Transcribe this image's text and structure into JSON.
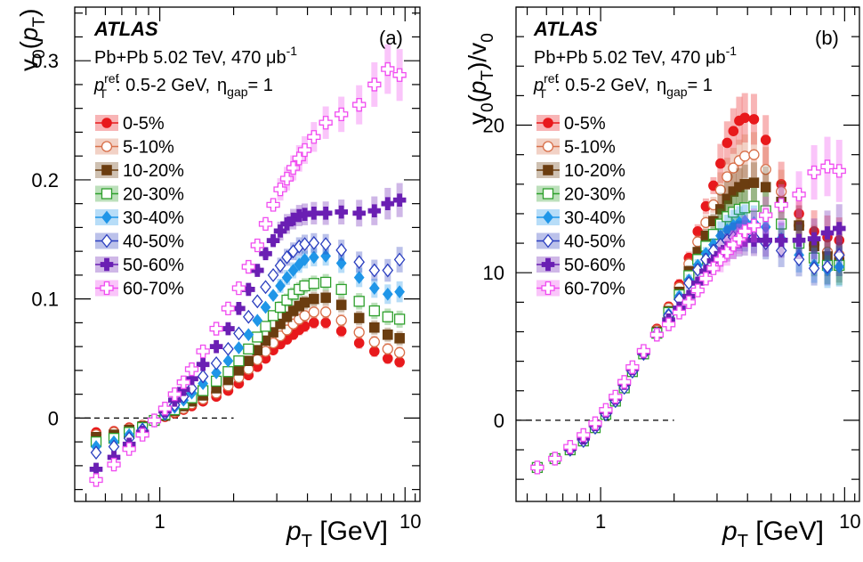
{
  "colors": {
    "series": [
      "#e8191c",
      "#d8704a",
      "#6b3d10",
      "#2ea02c",
      "#1f96e8",
      "#2b3fbf",
      "#6a1fb3",
      "#f04cf0"
    ],
    "reference_line": "#000000"
  },
  "chart_data": [
    {
      "type": "scatter",
      "panel": "(a)",
      "experiment": "ATLAS",
      "info_line1": "Pb+Pb 5.02 TeV, 470 μb",
      "info_line1_sup": "-1",
      "info_line2_p": "p",
      "info_line2_sup": "ref",
      "info_line2_sub": "T",
      "info_line2_rest": ": 0.5-2 GeV,",
      "info_eta": "η",
      "info_eta_sub": "gap",
      "info_eta_rest": "= 1",
      "ylabel": "v0(pT)",
      "xlabel": "pT [GeV]",
      "xscale": "log",
      "xlim": [
        0.45,
        11.5
      ],
      "ylim": [
        -0.07,
        0.345
      ],
      "yticks": [
        "0",
        "0.1",
        "0.2",
        "0.3"
      ],
      "xticks": [
        "1",
        "10"
      ],
      "legend_position": "top-left",
      "reference_line": "dashed at y = 0 from pT 0.45 to 2",
      "x": [
        0.55,
        0.65,
        0.75,
        0.85,
        0.95,
        1.05,
        1.15,
        1.25,
        1.35,
        1.5,
        1.7,
        1.9,
        2.1,
        2.3,
        2.5,
        2.7,
        2.9,
        3.1,
        3.3,
        3.5,
        3.7,
        3.9,
        4.25,
        4.75,
        5.5,
        6.5,
        7.5,
        8.5,
        9.5
      ],
      "series": [
        {
          "name": "0-5%",
          "values": [
            -0.012,
            -0.011,
            -0.008,
            -0.006,
            -0.002,
            0.001,
            0.004,
            0.007,
            0.01,
            0.014,
            0.018,
            0.023,
            0.029,
            0.036,
            0.043,
            0.05,
            0.057,
            0.062,
            0.066,
            0.07,
            0.074,
            0.077,
            0.08,
            0.08,
            0.073,
            0.063,
            0.056,
            0.05,
            0.047
          ]
        },
        {
          "name": "5-10%",
          "values": [
            -0.014,
            -0.012,
            -0.009,
            -0.006,
            -0.002,
            0.002,
            0.005,
            0.008,
            0.012,
            0.016,
            0.021,
            0.027,
            0.034,
            0.041,
            0.049,
            0.056,
            0.063,
            0.069,
            0.074,
            0.079,
            0.083,
            0.086,
            0.089,
            0.089,
            0.082,
            0.072,
            0.064,
            0.058,
            0.055
          ]
        },
        {
          "name": "10-20%",
          "values": [
            -0.016,
            -0.014,
            -0.01,
            -0.007,
            -0.002,
            0.002,
            0.006,
            0.01,
            0.014,
            0.019,
            0.025,
            0.032,
            0.04,
            0.048,
            0.057,
            0.065,
            0.072,
            0.079,
            0.085,
            0.09,
            0.094,
            0.097,
            0.1,
            0.101,
            0.095,
            0.084,
            0.076,
            0.07,
            0.067
          ]
        },
        {
          "name": "20-30%",
          "values": [
            -0.02,
            -0.017,
            -0.012,
            -0.008,
            -0.002,
            0.003,
            0.007,
            0.012,
            0.017,
            0.023,
            0.031,
            0.039,
            0.048,
            0.058,
            0.068,
            0.077,
            0.086,
            0.093,
            0.099,
            0.104,
            0.108,
            0.111,
            0.113,
            0.114,
            0.108,
            0.098,
            0.09,
            0.085,
            0.083
          ]
        },
        {
          "name": "30-40%",
          "values": [
            -0.024,
            -0.02,
            -0.014,
            -0.009,
            -0.002,
            0.003,
            0.009,
            0.015,
            0.021,
            0.029,
            0.038,
            0.048,
            0.059,
            0.07,
            0.082,
            0.093,
            0.103,
            0.111,
            0.118,
            0.124,
            0.129,
            0.133,
            0.135,
            0.136,
            0.13,
            0.118,
            0.109,
            0.104,
            0.106
          ]
        },
        {
          "name": "40-50%",
          "values": [
            -0.029,
            -0.024,
            -0.017,
            -0.01,
            -0.002,
            0.004,
            0.011,
            0.018,
            0.025,
            0.035,
            0.046,
            0.058,
            0.071,
            0.085,
            0.098,
            0.11,
            0.12,
            0.128,
            0.135,
            0.14,
            0.144,
            0.146,
            0.147,
            0.146,
            0.141,
            0.131,
            0.124,
            0.124,
            0.133
          ]
        },
        {
          "name": "50-60%",
          "values": [
            -0.043,
            -0.033,
            -0.022,
            -0.012,
            -0.002,
            0.006,
            0.015,
            0.024,
            0.033,
            0.045,
            0.06,
            0.075,
            0.092,
            0.108,
            0.124,
            0.138,
            0.149,
            0.157,
            0.163,
            0.167,
            0.17,
            0.171,
            0.172,
            0.172,
            0.173,
            0.172,
            0.174,
            0.18,
            0.183
          ]
        },
        {
          "name": "60-70%",
          "values": [
            -0.052,
            -0.039,
            -0.026,
            -0.014,
            -0.002,
            0.008,
            0.02,
            0.03,
            0.041,
            0.056,
            0.075,
            0.092,
            0.109,
            0.127,
            0.145,
            0.163,
            0.179,
            0.192,
            0.201,
            0.21,
            0.218,
            0.225,
            0.236,
            0.248,
            0.255,
            0.263,
            0.28,
            0.293,
            0.288
          ]
        }
      ]
    },
    {
      "type": "scatter",
      "panel": "(b)",
      "experiment": "ATLAS",
      "info_line1": "Pb+Pb 5.02 TeV, 470 μb",
      "info_line1_sup": "-1",
      "info_line2_p": "p",
      "info_line2_sup": "ref",
      "info_line2_sub": "T",
      "info_line2_rest": ": 0.5-2 GeV,",
      "info_eta": "η",
      "info_eta_sub": "gap",
      "info_eta_rest": "= 1",
      "ylabel": "v0(pT)/v0",
      "xlabel": "pT [GeV]",
      "xscale": "log",
      "xlim": [
        0.45,
        11.5
      ],
      "ylim": [
        -5.5,
        28
      ],
      "yticks": [
        "0",
        "10",
        "20"
      ],
      "xticks": [
        "1",
        "10"
      ],
      "legend_position": "top-left",
      "reference_line": "dashed at y = 0 from pT 0.45 to 2",
      "x": [
        0.55,
        0.65,
        0.75,
        0.85,
        0.95,
        1.05,
        1.15,
        1.25,
        1.35,
        1.5,
        1.7,
        1.9,
        2.1,
        2.3,
        2.5,
        2.7,
        2.9,
        3.1,
        3.3,
        3.5,
        3.7,
        3.9,
        4.25,
        4.75,
        5.5,
        6.5,
        7.5,
        8.5,
        9.5
      ],
      "series": [
        {
          "name": "0-5%",
          "values": [
            -3.2,
            -2.6,
            -2.0,
            -1.4,
            -0.5,
            0.4,
            1.3,
            2.2,
            3.3,
            4.6,
            6.2,
            7.7,
            9.2,
            11.0,
            12.8,
            14.5,
            15.9,
            17.4,
            18.8,
            19.6,
            20.3,
            20.5,
            20.4,
            19.0,
            16.0,
            14.0,
            12.8,
            12.4,
            12.2
          ]
        },
        {
          "name": "5-10%",
          "values": [
            -3.2,
            -2.6,
            -2.0,
            -1.4,
            -0.5,
            0.4,
            1.3,
            2.2,
            3.3,
            4.6,
            6.1,
            7.6,
            9.0,
            10.6,
            12.1,
            13.4,
            14.6,
            15.6,
            16.5,
            17.1,
            17.6,
            17.9,
            18.0,
            17.0,
            15.5,
            13.2,
            11.9,
            11.4,
            11.2
          ]
        },
        {
          "name": "10-20%",
          "values": [
            -3.2,
            -2.6,
            -2.0,
            -1.4,
            -0.5,
            0.4,
            1.3,
            2.2,
            3.3,
            4.5,
            6.0,
            7.4,
            8.7,
            10.1,
            11.4,
            12.5,
            13.5,
            14.3,
            15.0,
            15.5,
            15.8,
            16.0,
            16.1,
            15.8,
            14.8,
            13.2,
            11.8,
            11.1,
            10.7
          ]
        },
        {
          "name": "20-30%",
          "values": [
            -3.2,
            -2.6,
            -2.0,
            -1.4,
            -0.5,
            0.4,
            1.3,
            2.2,
            3.3,
            4.5,
            5.9,
            7.3,
            8.5,
            9.8,
            10.9,
            11.8,
            12.6,
            13.3,
            13.8,
            14.1,
            14.3,
            14.4,
            14.5,
            14.2,
            13.3,
            12.0,
            11.0,
            10.5,
            10.5
          ]
        },
        {
          "name": "30-40%",
          "values": [
            -3.2,
            -2.6,
            -2.0,
            -1.4,
            -0.5,
            0.4,
            1.3,
            2.2,
            3.3,
            4.5,
            5.9,
            7.2,
            8.4,
            9.5,
            10.5,
            11.3,
            11.9,
            12.5,
            12.9,
            13.2,
            13.4,
            13.5,
            13.4,
            13.1,
            12.3,
            11.2,
            10.5,
            10.2,
            10.4
          ]
        },
        {
          "name": "40-50%",
          "values": [
            -3.2,
            -2.6,
            -2.0,
            -1.4,
            -0.5,
            0.4,
            1.3,
            2.2,
            3.3,
            4.5,
            5.8,
            7.1,
            8.2,
            9.3,
            10.2,
            10.9,
            11.5,
            11.9,
            12.2,
            12.4,
            12.5,
            12.5,
            12.4,
            12.0,
            11.5,
            10.9,
            10.3,
            10.4,
            11.2
          ]
        },
        {
          "name": "50-60%",
          "values": [
            -3.2,
            -2.6,
            -1.9,
            -1.2,
            -0.3,
            0.6,
            1.5,
            2.5,
            3.5,
            4.6,
            5.8,
            6.8,
            7.6,
            8.4,
            9.3,
            10.1,
            10.8,
            11.3,
            11.7,
            11.9,
            12.1,
            12.2,
            12.2,
            12.2,
            12.2,
            12.2,
            12.3,
            12.7,
            13.0
          ]
        },
        {
          "name": "60-70%",
          "values": [
            -3.2,
            -2.6,
            -1.8,
            -1.0,
            -0.2,
            0.7,
            1.6,
            2.6,
            3.6,
            4.7,
            5.8,
            6.5,
            7.3,
            8.0,
            8.8,
            9.6,
            10.3,
            10.9,
            11.4,
            11.9,
            12.3,
            12.8,
            13.2,
            13.9,
            14.6,
            15.3,
            16.8,
            17.2,
            16.9
          ]
        }
      ]
    }
  ]
}
